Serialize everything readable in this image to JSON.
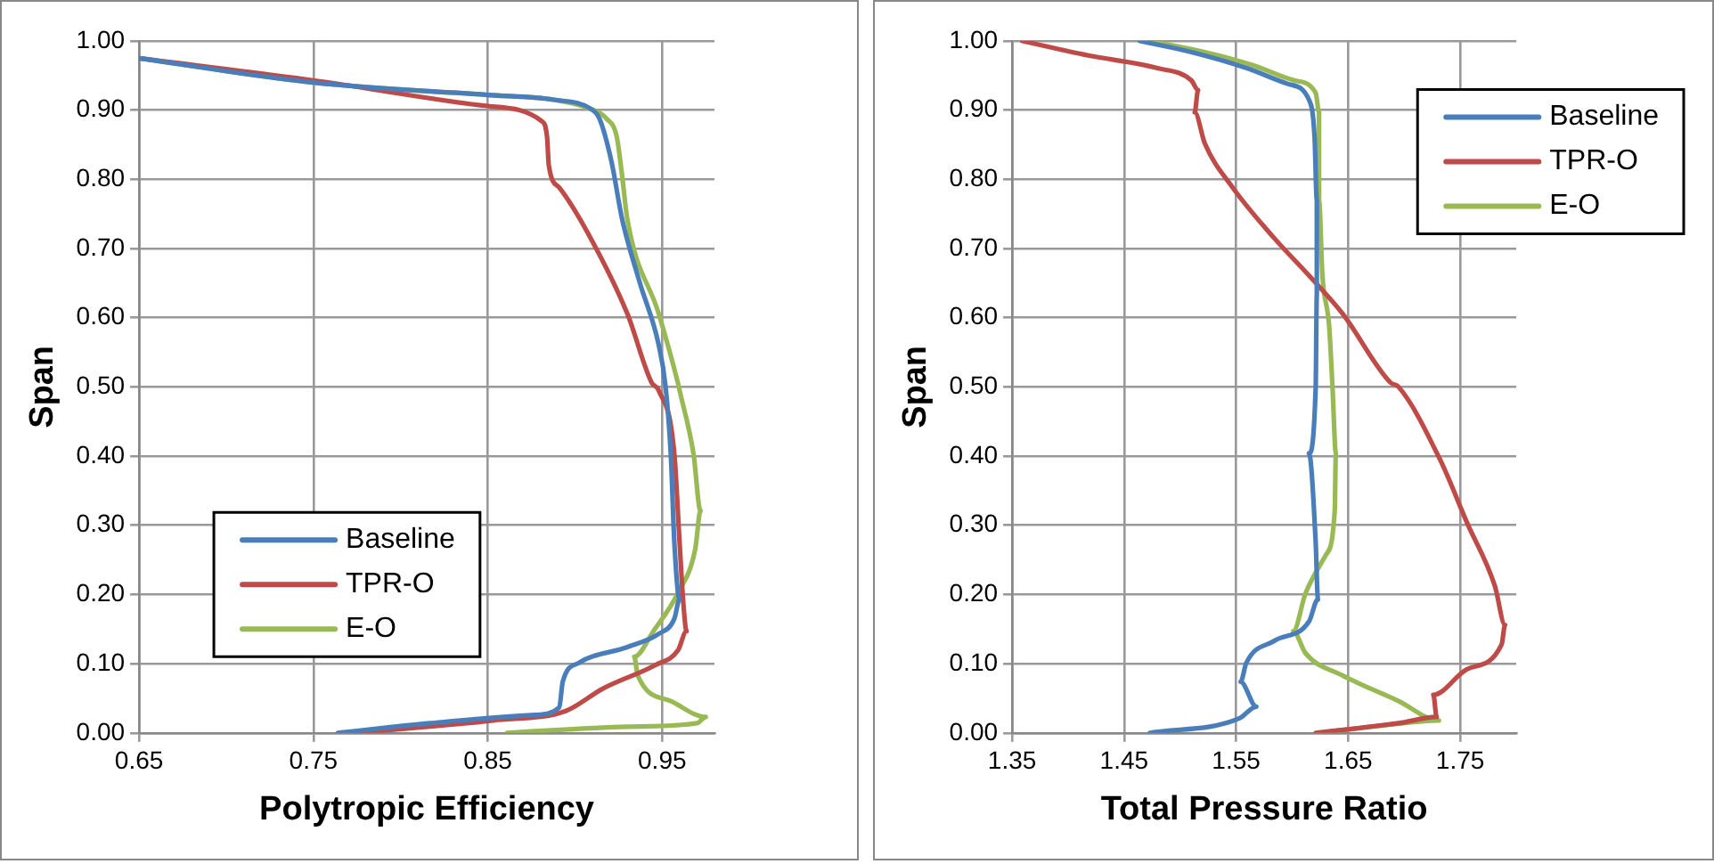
{
  "chart_data": [
    {
      "type": "line",
      "xlabel": "Polytropic Efficiency",
      "ylabel": "Span",
      "xlim": [
        0.65,
        0.98
      ],
      "xticks": [
        {
          "value": 0.65,
          "label": "0.65"
        },
        {
          "value": 0.75,
          "label": "0.75"
        },
        {
          "value": 0.85,
          "label": "0.85"
        },
        {
          "value": 0.95,
          "label": "0.95"
        }
      ],
      "ylim": [
        0,
        1
      ],
      "yticks": [
        {
          "value": 0,
          "label": "0.00"
        },
        {
          "value": 0.1,
          "label": "0.10"
        },
        {
          "value": 0.2,
          "label": "0.20"
        },
        {
          "value": 0.3,
          "label": "0.30"
        },
        {
          "value": 0.4,
          "label": "0.40"
        },
        {
          "value": 0.5,
          "label": "0.50"
        },
        {
          "value": 0.6,
          "label": "0.60"
        },
        {
          "value": 0.7,
          "label": "0.70"
        },
        {
          "value": 0.8,
          "label": "0.80"
        },
        {
          "value": 0.9,
          "label": "0.90"
        },
        {
          "value": 1,
          "label": "1.00"
        }
      ],
      "grid": true,
      "legend": "bottom left",
      "marker": "none",
      "line_style": "solid",
      "series": [
        {
          "name": "Baseline",
          "color": "#4a7ebb",
          "x": [
            0.65,
            0.75,
            0.85,
            0.888,
            0.909,
            0.914,
            0.921,
            0.927,
            0.937,
            0.948,
            0.952,
            0.955,
            0.957,
            0.96,
            0.957,
            0.948,
            0.93,
            0.902,
            0.893,
            0.891,
            0.877,
            0.817,
            0.764
          ],
          "values": [
            0.975,
            0.94,
            0.922,
            0.915,
            0.902,
            0.888,
            0.825,
            0.743,
            0.652,
            0.561,
            0.5,
            0.4,
            0.275,
            0.193,
            0.165,
            0.143,
            0.124,
            0.101,
            0.074,
            0.037,
            0.026,
            0.014,
            0
          ]
        },
        {
          "name": "TPR-O",
          "color": "#be4b48",
          "x": [
            0.65,
            0.75,
            0.85,
            0.881,
            0.884,
            0.885,
            0.891,
            0.909,
            0.93,
            0.944,
            0.948,
            0.957,
            0.96,
            0.962,
            0.964,
            0.959,
            0.946,
            0.916,
            0.895,
            0.853,
            0.775
          ],
          "values": [
            0.975,
            0.943,
            0.906,
            0.884,
            0.861,
            0.82,
            0.788,
            0.715,
            0.606,
            0.506,
            0.495,
            0.403,
            0.275,
            0.193,
            0.147,
            0.119,
            0.098,
            0.064,
            0.032,
            0.018,
            0
          ]
        },
        {
          "name": "E-O",
          "color": "#98b954",
          "x": [
            0.65,
            0.75,
            0.85,
            0.888,
            0.909,
            0.918,
            0.924,
            0.927,
            0.93,
            0.948,
            0.959,
            0.96,
            0.968,
            0.972,
            0.969,
            0.959,
            0.945,
            0.934,
            0.936,
            0.955,
            0.975,
            0.97,
            0.93,
            0.861
          ],
          "values": [
            0.975,
            0.94,
            0.922,
            0.915,
            0.902,
            0.888,
            0.861,
            0.806,
            0.743,
            0.606,
            0.506,
            0.495,
            0.403,
            0.321,
            0.266,
            0.202,
            0.147,
            0.11,
            0.083,
            0.046,
            0.023,
            0.014,
            0.009,
            0
          ]
        }
      ]
    },
    {
      "type": "line",
      "xlabel": "Total Pressure Ratio",
      "ylabel": "Span",
      "xlim": [
        1.35,
        1.8
      ],
      "xticks": [
        {
          "value": 1.35,
          "label": "1.35"
        },
        {
          "value": 1.45,
          "label": "1.45"
        },
        {
          "value": 1.55,
          "label": "1.55"
        },
        {
          "value": 1.65,
          "label": "1.65"
        },
        {
          "value": 1.75,
          "label": "1.75"
        }
      ],
      "ylim": [
        0,
        1
      ],
      "yticks": [
        {
          "value": 0,
          "label": "0.00"
        },
        {
          "value": 0.1,
          "label": "0.10"
        },
        {
          "value": 0.2,
          "label": "0.20"
        },
        {
          "value": 0.3,
          "label": "0.30"
        },
        {
          "value": 0.4,
          "label": "0.40"
        },
        {
          "value": 0.5,
          "label": "0.50"
        },
        {
          "value": 0.6,
          "label": "0.60"
        },
        {
          "value": 0.7,
          "label": "0.70"
        },
        {
          "value": 0.8,
          "label": "0.80"
        },
        {
          "value": 0.9,
          "label": "0.90"
        },
        {
          "value": 1,
          "label": "1.00"
        }
      ],
      "grid": true,
      "legend": "top right",
      "marker": "none",
      "line_style": "solid",
      "series": [
        {
          "name": "Baseline",
          "color": "#4a7ebb",
          "x": [
            1.464,
            1.51,
            1.559,
            1.596,
            1.615,
            1.62,
            1.622,
            1.622,
            1.621,
            1.615,
            1.621,
            1.623,
            1.615,
            1.584,
            1.559,
            1.554,
            1.568,
            1.553,
            1.473
          ],
          "values": [
            1,
            0.984,
            0.961,
            0.938,
            0.915,
            0.861,
            0.77,
            0.634,
            0.5,
            0.404,
            0.275,
            0.193,
            0.161,
            0.133,
            0.101,
            0.074,
            0.038,
            0.021,
            0
          ]
        },
        {
          "name": "TPR-O",
          "color": "#be4b48",
          "x": [
            1.359,
            1.418,
            1.479,
            1.51,
            1.516,
            1.513,
            1.522,
            1.547,
            1.584,
            1.615,
            1.645,
            1.688,
            1.695,
            1.732,
            1.756,
            1.781,
            1.79,
            1.787,
            1.756,
            1.726,
            1.729,
            1.695,
            1.621
          ],
          "values": [
            1,
            0.979,
            0.961,
            0.943,
            0.929,
            0.897,
            0.852,
            0.788,
            0.715,
            0.661,
            0.606,
            0.506,
            0.5,
            0.395,
            0.304,
            0.212,
            0.156,
            0.128,
            0.092,
            0.055,
            0.023,
            0.014,
            0
          ]
        },
        {
          "name": "E-O",
          "color": "#98b954",
          "x": [
            1.473,
            1.522,
            1.565,
            1.602,
            1.621,
            1.624,
            1.624,
            1.627,
            1.633,
            1.636,
            1.639,
            1.638,
            1.63,
            1.612,
            1.601,
            1.612,
            1.645,
            1.695,
            1.731,
            1.682,
            1.624
          ],
          "values": [
            1,
            0.984,
            0.965,
            0.943,
            0.925,
            0.897,
            0.77,
            0.661,
            0.588,
            0.5,
            0.404,
            0.321,
            0.257,
            0.202,
            0.147,
            0.115,
            0.083,
            0.046,
            0.018,
            0.011,
            0
          ]
        }
      ]
    }
  ]
}
